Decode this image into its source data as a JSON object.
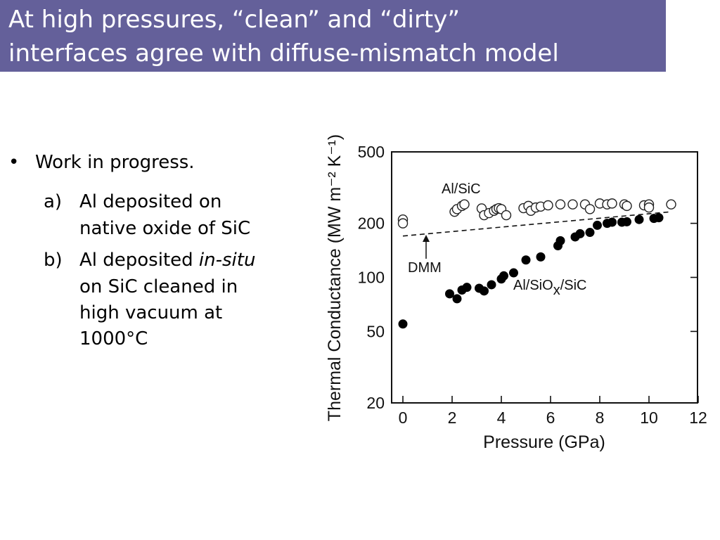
{
  "slide": {
    "title_line_1": "At high pressures, “clean” and “dirty”",
    "title_line_2": "interfaces agree with diffuse-mismatch model",
    "title_bar_color": "#64609a"
  },
  "content": {
    "bullet": "Work in progress.",
    "bullet_marker": "•",
    "item_a": {
      "marker": "a)",
      "line1": "Al deposited on",
      "line2": "native oxide of SiC"
    },
    "item_b": {
      "marker": "b)",
      "line1_prefix": "Al deposited ",
      "line1_italic": "in-situ",
      "line2": "on SiC cleaned in",
      "line3": "high vacuum at",
      "line4": "1000°C"
    }
  },
  "chart_data": {
    "type": "scatter",
    "xlabel": "Pressure (GPa)",
    "ylabel": "Thermal Conductance (MW m⁻² K⁻¹)",
    "y_scale": "log",
    "xlim": [
      -0.5,
      12
    ],
    "ylim": [
      20,
      500
    ],
    "x_ticks": [
      "0",
      "2",
      "4",
      "6",
      "8",
      "10",
      "12"
    ],
    "y_ticks": [
      "20",
      "50",
      "100",
      "200",
      "500"
    ],
    "annotations": {
      "open_label": "Al/SiC",
      "filled_label_prefix": "Al/SiO",
      "filled_label_sub": "x",
      "filled_label_suffix": "/SiC",
      "dmm_label": "DMM"
    },
    "series": [
      {
        "name": "Al/SiC",
        "marker": "open-circle",
        "x": [
          0,
          0,
          2.1,
          2.2,
          2.4,
          2.5,
          3.2,
          3.3,
          3.5,
          3.7,
          3.8,
          3.9,
          4.0,
          4.2,
          4.9,
          5.1,
          5.2,
          5.4,
          5.6,
          5.9,
          6.4,
          6.9,
          7.4,
          7.6,
          8.0,
          8.3,
          8.5,
          9.0,
          9.1,
          9.8,
          10.0,
          10.0,
          10.9
        ],
        "y": [
          210,
          200,
          232,
          240,
          250,
          255,
          242,
          222,
          228,
          235,
          240,
          243,
          240,
          222,
          243,
          250,
          235,
          245,
          248,
          252,
          255,
          255,
          255,
          240,
          258,
          255,
          258,
          255,
          250,
          252,
          255,
          245,
          255
        ]
      },
      {
        "name": "Al/SiOx/SiC",
        "marker": "filled-circle",
        "x": [
          0,
          1.9,
          2.2,
          2.4,
          2.6,
          3.1,
          3.3,
          3.6,
          4.0,
          4.1,
          4.5,
          5.0,
          5.6,
          6.3,
          6.4,
          7.0,
          7.2,
          7.6,
          7.9,
          8.3,
          8.5,
          8.9,
          9.1,
          9.6,
          10.2,
          10.4
        ],
        "y": [
          55,
          81,
          76,
          85,
          88,
          87,
          84,
          91,
          98,
          102,
          106,
          125,
          130,
          150,
          160,
          168,
          175,
          178,
          195,
          200,
          203,
          203,
          204,
          210,
          213,
          215
        ]
      },
      {
        "name": "DMM",
        "marker": "dashed-line",
        "x": [
          0,
          10.9
        ],
        "y": [
          170,
          232
        ]
      }
    ]
  }
}
